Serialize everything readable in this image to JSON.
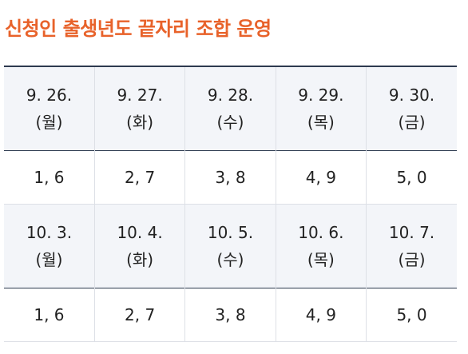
{
  "title": "신청인 출생년도 끝자리 조합 운영",
  "table": {
    "rows": [
      [
        {
          "date": "9. 26.",
          "day": "(월)"
        },
        {
          "date": "9. 27.",
          "day": "(화)"
        },
        {
          "date": "9. 28.",
          "day": "(수)"
        },
        {
          "date": "9. 29.",
          "day": "(목)"
        },
        {
          "date": "9. 30.",
          "day": "(금)"
        }
      ],
      [
        "1, 6",
        "2, 7",
        "3, 8",
        "4, 9",
        "5, 0"
      ],
      [
        {
          "date": "10. 3.",
          "day": "(월)"
        },
        {
          "date": "10. 4.",
          "day": "(화)"
        },
        {
          "date": "10. 5.",
          "day": "(수)"
        },
        {
          "date": "10. 6.",
          "day": "(목)"
        },
        {
          "date": "10. 7.",
          "day": "(금)"
        }
      ],
      [
        "1, 6",
        "2, 7",
        "3, 8",
        "4, 9",
        "5, 0"
      ]
    ]
  }
}
